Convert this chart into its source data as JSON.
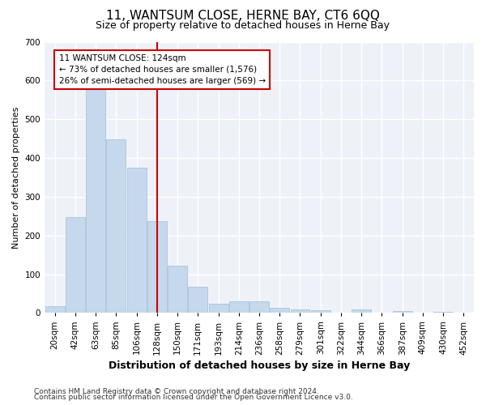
{
  "title": "11, WANTSUM CLOSE, HERNE BAY, CT6 6QQ",
  "subtitle": "Size of property relative to detached houses in Herne Bay",
  "xlabel": "Distribution of detached houses by size in Herne Bay",
  "ylabel": "Number of detached properties",
  "bar_color": "#c5d8ec",
  "bar_edge_color": "#a8c4de",
  "background_color": "#eef2f8",
  "grid_color": "#ffffff",
  "categories": [
    "20sqm",
    "42sqm",
    "63sqm",
    "85sqm",
    "106sqm",
    "128sqm",
    "150sqm",
    "171sqm",
    "193sqm",
    "214sqm",
    "236sqm",
    "258sqm",
    "279sqm",
    "301sqm",
    "322sqm",
    "344sqm",
    "366sqm",
    "387sqm",
    "409sqm",
    "430sqm",
    "452sqm"
  ],
  "values": [
    18,
    248,
    583,
    449,
    375,
    238,
    122,
    67,
    24,
    30,
    30,
    14,
    10,
    8,
    0,
    9,
    0,
    5,
    0,
    3,
    0
  ],
  "vline_index": 5,
  "annotation_line1": "11 WANTSUM CLOSE: 124sqm",
  "annotation_line2": "← 73% of detached houses are smaller (1,576)",
  "annotation_line3": "26% of semi-detached houses are larger (569) →",
  "annotation_color": "#cc0000",
  "ylim_max": 700,
  "yticks": [
    0,
    100,
    200,
    300,
    400,
    500,
    600,
    700
  ],
  "footnote1": "Contains HM Land Registry data © Crown copyright and database right 2024.",
  "footnote2": "Contains public sector information licensed under the Open Government Licence v3.0.",
  "title_fontsize": 11,
  "subtitle_fontsize": 9,
  "ylabel_fontsize": 8,
  "xlabel_fontsize": 9,
  "tick_fontsize": 7.5,
  "footnote_fontsize": 6.5
}
